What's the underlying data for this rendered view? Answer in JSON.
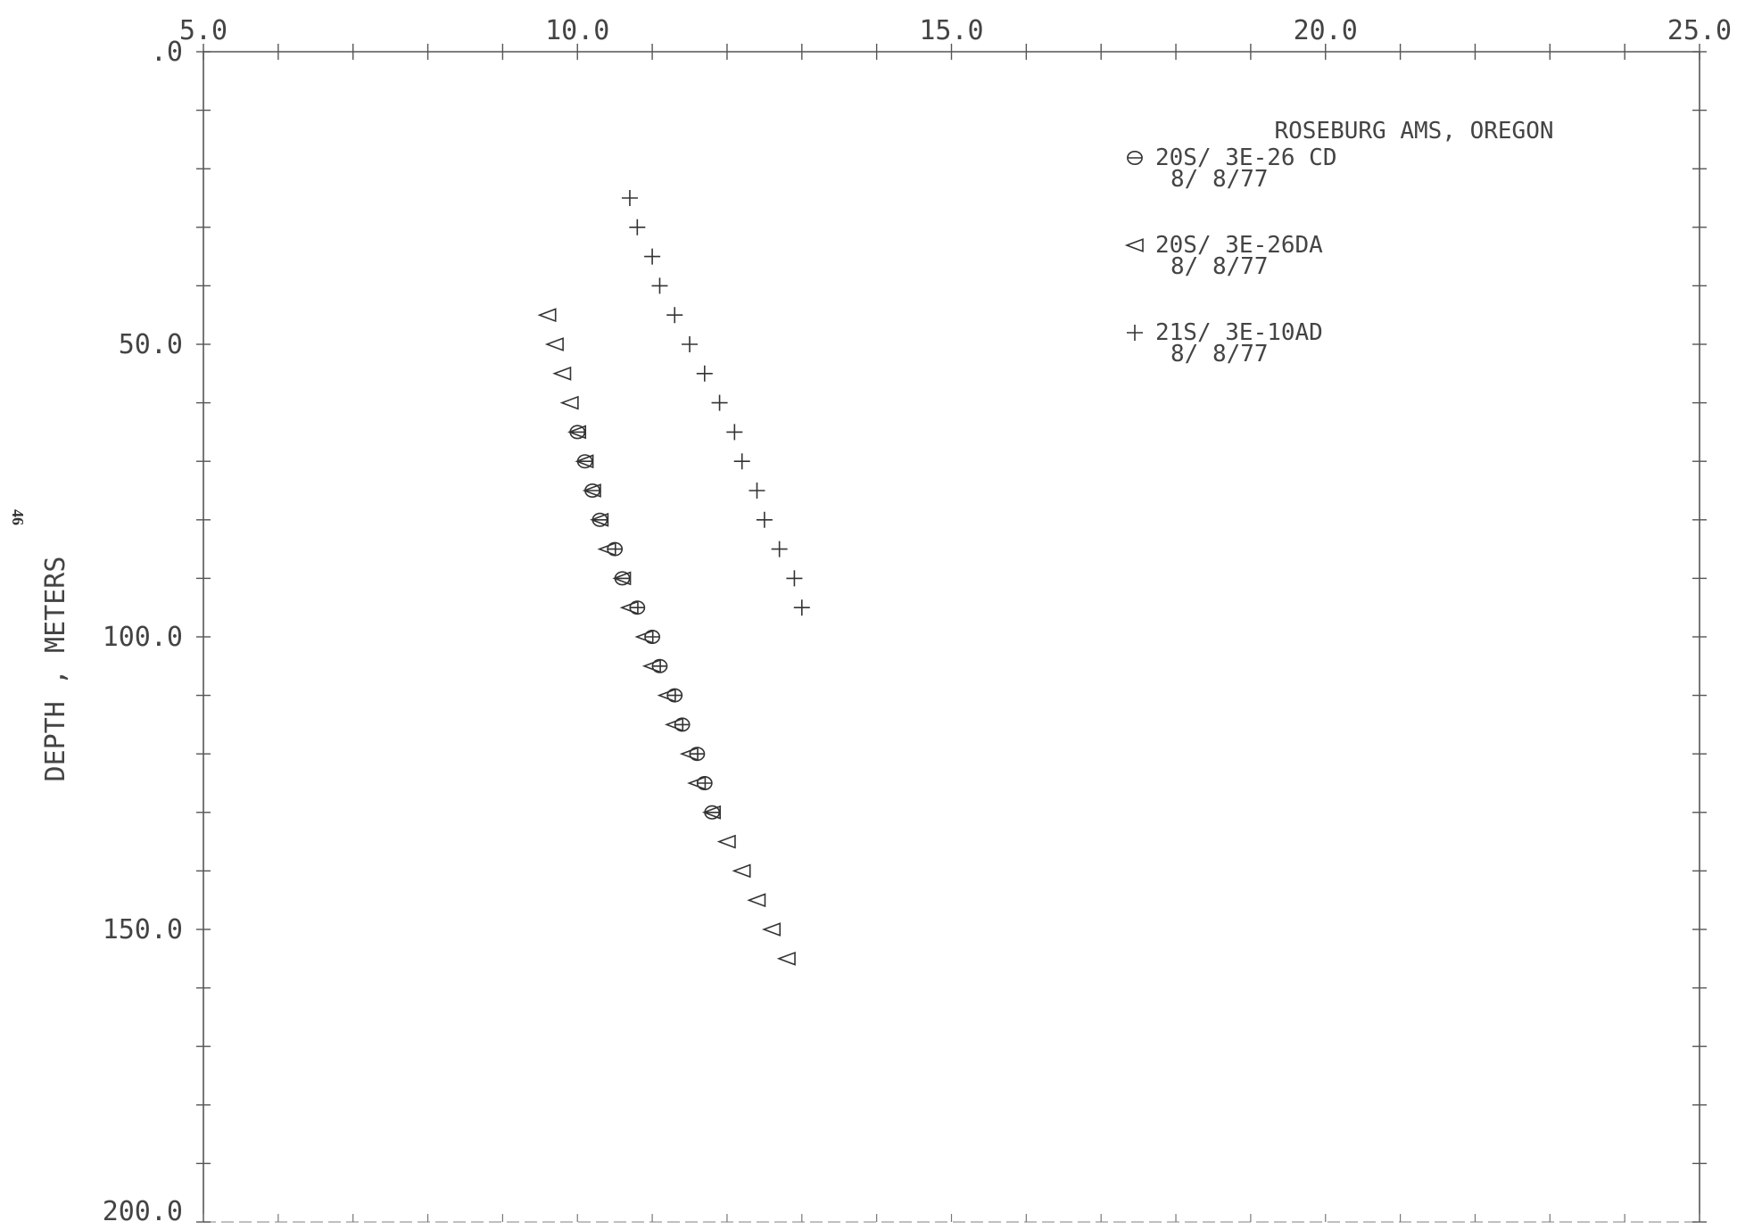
{
  "page_number": "46",
  "chart_data": {
    "type": "scatter",
    "title": "ROSEBURG AMS, OREGON",
    "xlabel": "",
    "ylabel": "DEPTH , METERS",
    "xlim": [
      5.0,
      25.0
    ],
    "ylim": [
      0,
      200
    ],
    "y_inverted": true,
    "x_axis_position": "top",
    "grid": false,
    "legend_position": "top-right",
    "x_tick_labels": [
      "5.0",
      "10.0",
      "15.0",
      "20.0",
      "25.0"
    ],
    "x_ticks": [
      5,
      10,
      15,
      20,
      25
    ],
    "y_tick_labels": [
      ".0",
      "50.0",
      "100.0",
      "150.0",
      "200.0"
    ],
    "y_ticks": [
      0,
      50,
      100,
      150,
      200
    ],
    "series": [
      {
        "name": "20S/ 3E-26 CD",
        "date": "8/ 8/77",
        "marker": "circle-theta",
        "color": "#333333",
        "x": [
          10.0,
          10.1,
          10.2,
          10.3,
          10.5,
          10.6,
          10.8,
          11.0,
          11.1,
          11.3,
          11.4,
          11.6,
          11.7,
          11.8
        ],
        "y": [
          65,
          70,
          75,
          80,
          85,
          90,
          95,
          100,
          105,
          110,
          115,
          120,
          125,
          130
        ]
      },
      {
        "name": "20S/ 3E-26DA",
        "date": "8/ 8/77",
        "marker": "triangle-left",
        "color": "#333333",
        "x": [
          9.6,
          9.7,
          9.8,
          9.9,
          10.0,
          10.1,
          10.2,
          10.3,
          10.4,
          10.6,
          10.7,
          10.9,
          11.0,
          11.2,
          11.3,
          11.5,
          11.6,
          11.8,
          12.0,
          12.2,
          12.4,
          12.6,
          12.8
        ],
        "y": [
          45,
          50,
          55,
          60,
          65,
          70,
          75,
          80,
          85,
          90,
          95,
          100,
          105,
          110,
          115,
          120,
          125,
          130,
          135,
          140,
          145,
          150,
          155
        ]
      },
      {
        "name": "21S/ 3E-10AD",
        "date": "8/ 8/77",
        "marker": "plus",
        "color": "#333333",
        "x": [
          10.7,
          10.8,
          11.0,
          11.1,
          11.3,
          11.5,
          11.7,
          11.9,
          12.1,
          12.2,
          12.4,
          12.5,
          12.7,
          12.9,
          13.0
        ],
        "y": [
          25,
          30,
          35,
          40,
          45,
          50,
          55,
          60,
          65,
          70,
          75,
          80,
          85,
          90,
          95
        ]
      }
    ]
  }
}
